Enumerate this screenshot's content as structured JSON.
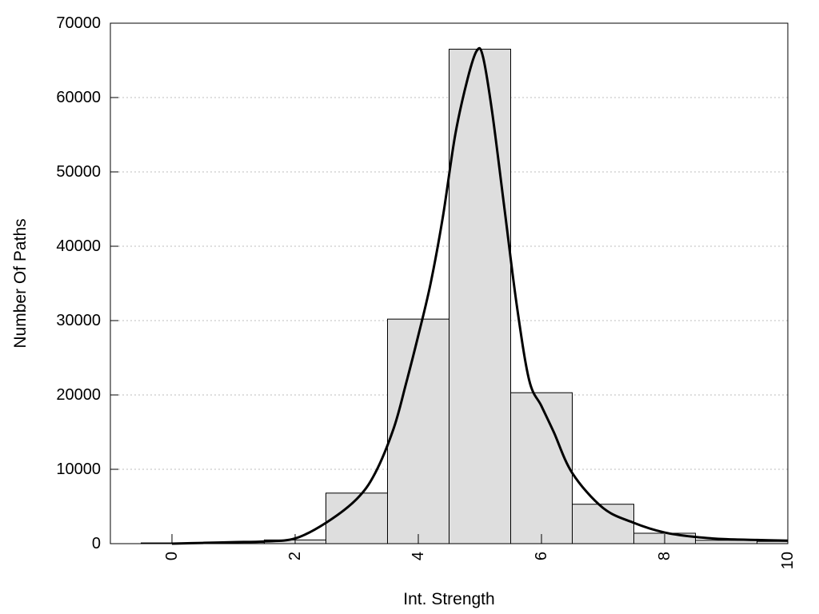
{
  "chart_data": {
    "type": "bar",
    "xlabel": "Int. Strength",
    "ylabel": "Number Of Paths",
    "xlim": [
      -1,
      10
    ],
    "ylim": [
      0,
      70000
    ],
    "x_ticks": [
      0,
      2,
      4,
      6,
      8,
      10
    ],
    "y_ticks": [
      0,
      10000,
      20000,
      30000,
      40000,
      50000,
      60000,
      70000
    ],
    "grid": {
      "horizontal": true,
      "vertical": false,
      "style": "dotted"
    },
    "bar_width": 1,
    "bars": [
      {
        "x": 0,
        "value": 100
      },
      {
        "x": 1,
        "value": 150
      },
      {
        "x": 2,
        "value": 500
      },
      {
        "x": 3,
        "value": 6800
      },
      {
        "x": 4,
        "value": 30200
      },
      {
        "x": 5,
        "value": 66500
      },
      {
        "x": 6,
        "value": 20300
      },
      {
        "x": 7,
        "value": 5300
      },
      {
        "x": 8,
        "value": 1400
      },
      {
        "x": 9,
        "value": 450
      },
      {
        "x": 10,
        "value": 300
      }
    ],
    "curve": {
      "x": [
        0,
        0.5,
        1.0,
        1.5,
        2.0,
        2.5,
        3.0,
        3.3,
        3.6,
        3.8,
        4.0,
        4.2,
        4.4,
        4.6,
        4.8,
        4.95,
        5.05,
        5.2,
        5.4,
        5.6,
        5.8,
        6.0,
        6.2,
        6.5,
        7.0,
        7.5,
        8.0,
        8.5,
        9.0,
        9.5,
        10.0
      ],
      "y": [
        0,
        100,
        200,
        300,
        700,
        2800,
        6000,
        9500,
        15500,
        21500,
        28000,
        35000,
        44000,
        55000,
        62500,
        66300,
        65500,
        58000,
        45000,
        32000,
        22000,
        18500,
        15000,
        9500,
        4800,
        2800,
        1500,
        900,
        600,
        500,
        400
      ]
    },
    "colors": {
      "bar_fill": "#dedede",
      "bar_stroke": "#000000",
      "curve": "#000000",
      "grid": "#bdbdbd"
    }
  }
}
